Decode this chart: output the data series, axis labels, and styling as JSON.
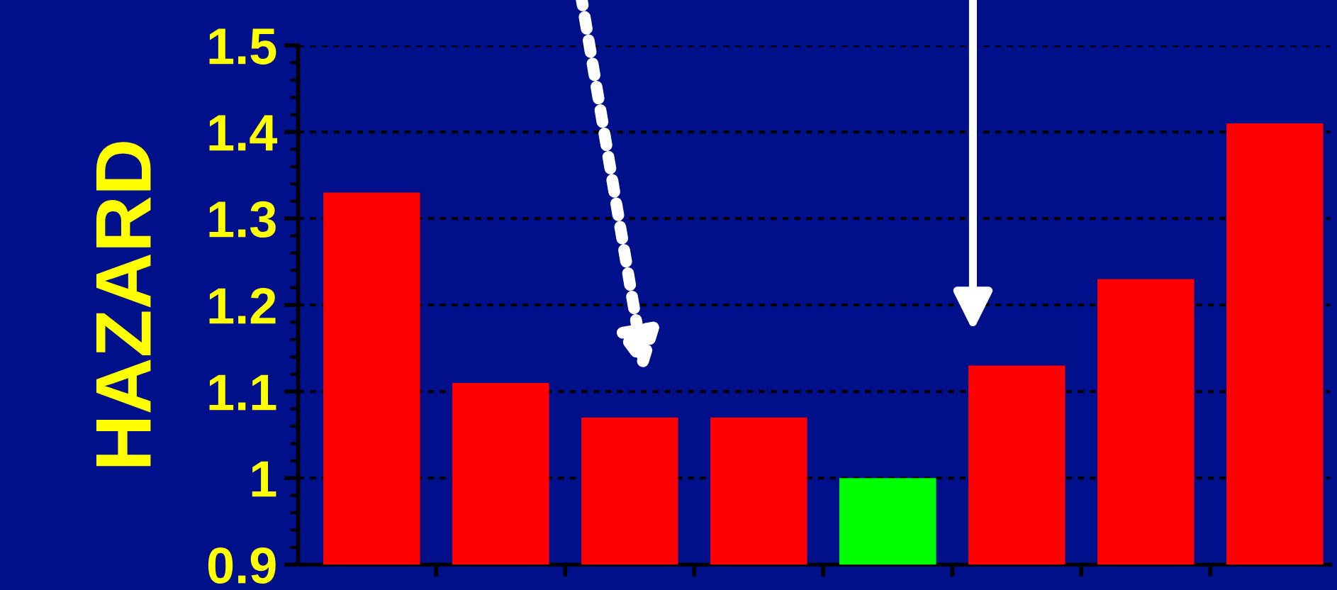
{
  "chart_data": {
    "type": "bar",
    "ylabel": "HAZARD",
    "categories": [
      null,
      null,
      null,
      null,
      null,
      null,
      null,
      null
    ],
    "values": [
      1.33,
      1.11,
      1.07,
      1.07,
      1.0,
      1.13,
      1.23,
      1.41
    ],
    "colors": [
      "#ff0000",
      "#ff0000",
      "#ff0000",
      "#ff0000",
      "#00ff00",
      "#ff0000",
      "#ff0000",
      "#ff0000"
    ],
    "ylim": [
      0.9,
      1.5
    ],
    "yticks": [
      0.9,
      1,
      1.1,
      1.2,
      1.3,
      1.4,
      1.5
    ],
    "grid": "y",
    "tick_labels": "y"
  }
}
